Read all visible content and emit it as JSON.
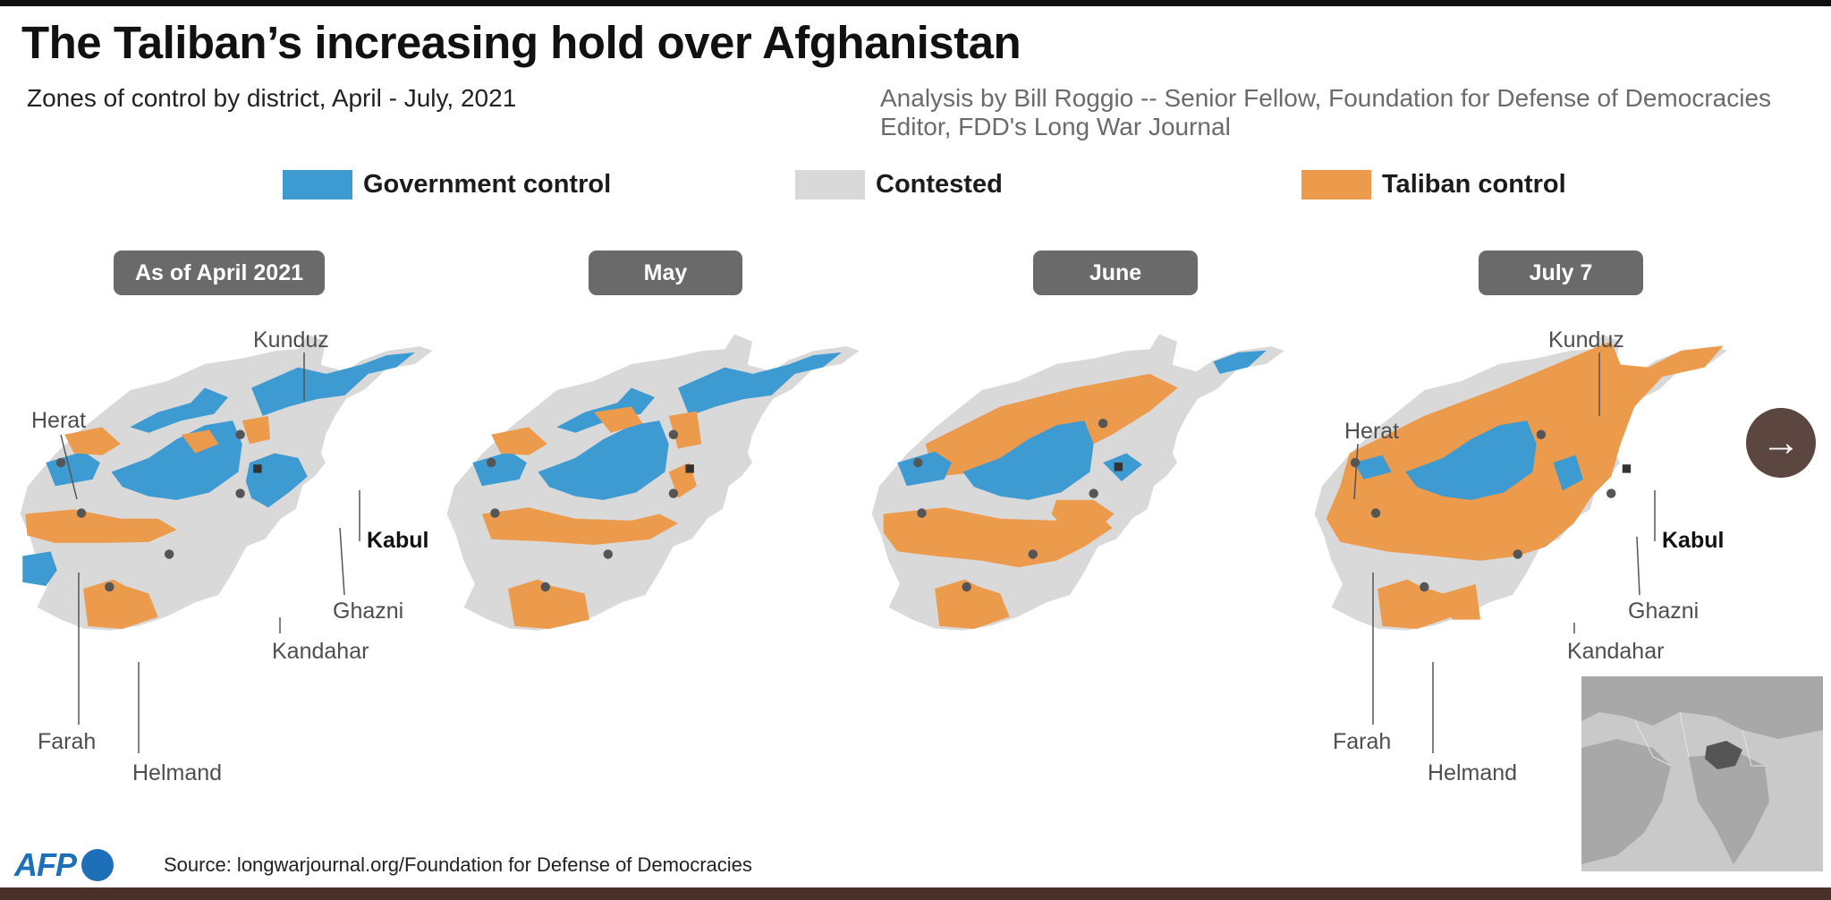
{
  "title": "The Taliban’s increasing hold over Afghanistan",
  "subtitle": "Zones of control by district, April - July, 2021",
  "analysis": {
    "line1": "Analysis by Bill Roggio -- Senior Fellow, Foundation for Defense of Democracies",
    "line2": "Editor, FDD's Long War Journal"
  },
  "legend": [
    {
      "label": "Government control",
      "color": "#3d9bd1"
    },
    {
      "label": "Contested",
      "color": "#d9d9d9"
    },
    {
      "label": "Taliban control",
      "color": "#ec9a4c"
    }
  ],
  "panels": [
    {
      "label": "As of April 2021"
    },
    {
      "label": "May"
    },
    {
      "label": "June"
    },
    {
      "label": "July 7"
    }
  ],
  "cities": {
    "kunduz": "Kunduz",
    "herat": "Herat",
    "kabul": "Kabul",
    "ghazni": "Ghazni",
    "kandahar": "Kandahar",
    "farah": "Farah",
    "helmand": "Helmand"
  },
  "colors": {
    "government": "#3d9bd1",
    "contested": "#d9d9d9",
    "taliban": "#ec9a4c",
    "label_bg": "#6a6a6a",
    "brand": "#1d6fb8"
  },
  "icons": {
    "next": "arrow-right-icon"
  },
  "logo": "AFP",
  "source": "Source: longwarjournal.org/Foundation for Defense of Democracies"
}
